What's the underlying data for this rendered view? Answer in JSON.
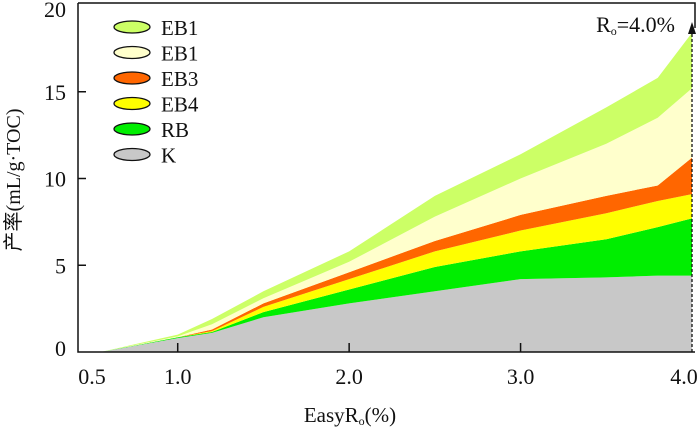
{
  "chart_data": {
    "type": "area",
    "stacked": true,
    "title": "",
    "xlabel": "EasyRo(%)",
    "xlabel_main": "EasyR",
    "xlabel_sub": "o",
    "xlabel_tail": "(%)",
    "ylabel": "产率(mL/g·TOC)",
    "xlim": [
      0.42,
      4.05
    ],
    "ylim": [
      0,
      20
    ],
    "xticks": [
      0.5,
      1.0,
      2.0,
      3.0,
      4.0
    ],
    "xtick_labels": [
      "0.5",
      "1.0",
      "2.0",
      "3.0",
      "4.0"
    ],
    "yticks": [
      0,
      5,
      10,
      15,
      20
    ],
    "ytick_labels": [
      "0",
      "5",
      "10",
      "15",
      "20"
    ],
    "grid": false,
    "legend_position": "top-left",
    "x": [
      0.55,
      1.0,
      1.2,
      1.5,
      2.0,
      2.5,
      3.0,
      3.5,
      3.8,
      4.0
    ],
    "series": [
      {
        "name": "K",
        "color": "#c8c8c8",
        "values": [
          0,
          0.8,
          1.1,
          2.0,
          2.8,
          3.5,
          4.2,
          4.3,
          4.4,
          4.4
        ]
      },
      {
        "name": "RB",
        "color": "#00ee00",
        "values": [
          0,
          0.05,
          0.05,
          0.3,
          0.8,
          1.4,
          1.6,
          2.2,
          2.8,
          3.3
        ]
      },
      {
        "name": "EB4",
        "color": "#ffff00",
        "values": [
          0,
          0,
          0.05,
          0.3,
          0.6,
          0.9,
          1.2,
          1.5,
          1.5,
          1.4
        ]
      },
      {
        "name": "EB3",
        "color": "#ff6600",
        "values": [
          0,
          0,
          0.1,
          0.2,
          0.4,
          0.6,
          0.9,
          1.0,
          0.9,
          2.1
        ]
      },
      {
        "name": "EB1",
        "color": "#ffffcc",
        "values": [
          0,
          0.05,
          0.3,
          0.3,
          0.6,
          1.4,
          2.1,
          3.0,
          3.9,
          4.0
        ]
      },
      {
        "name": "EB1",
        "color": "#ccff66",
        "values": [
          0,
          0.1,
          0.3,
          0.4,
          0.6,
          1.2,
          1.4,
          2.1,
          2.3,
          3.2
        ]
      }
    ],
    "legend_order": [
      5,
      4,
      3,
      2,
      1,
      0
    ],
    "annotation": {
      "x": 4.0,
      "text_main": "R",
      "text_sub": "o",
      "text_tail": "=4.0%"
    }
  }
}
